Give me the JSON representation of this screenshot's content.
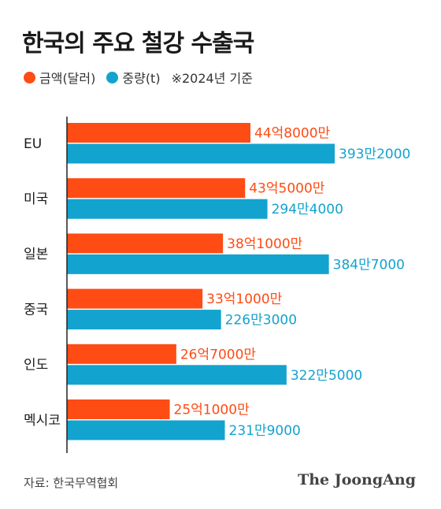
{
  "title": "한국의 주요 철강 수출국",
  "legend": {
    "amount": "금액(달러)",
    "weight": "중량(t)",
    "note": "※2024년 기준"
  },
  "colors": {
    "amount": "#ff4b14",
    "weight": "#13a3cf",
    "axis": "#222222"
  },
  "source": "자료: 한국무역협회",
  "brand": "The JoongAng",
  "chart_data": {
    "type": "bar",
    "orientation": "horizontal",
    "categories": [
      "EU",
      "미국",
      "일본",
      "중국",
      "인도",
      "멕시코"
    ],
    "series": [
      {
        "name": "금액(달러)",
        "values": [
          4480000000,
          4350000000,
          3810000000,
          3310000000,
          2670000000,
          2510000000
        ],
        "labels": [
          "44억8000만",
          "43억5000만",
          "38억1000만",
          "33억1000만",
          "26억7000만",
          "25억1000만"
        ]
      },
      {
        "name": "중량(t)",
        "values": [
          3932000,
          2944000,
          3847000,
          2263000,
          3225000,
          2319000
        ],
        "labels": [
          "393만2000",
          "294만4000",
          "384만7000",
          "226만3000",
          "322만5000",
          "231만9000"
        ]
      }
    ]
  }
}
